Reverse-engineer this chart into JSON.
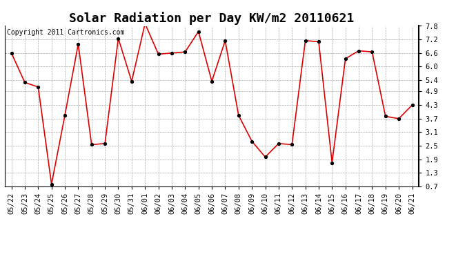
{
  "title": "Solar Radiation per Day KW/m2 20110621",
  "copyright_text": "Copyright 2011 Cartronics.com",
  "dates": [
    "05/22",
    "05/23",
    "05/24",
    "05/25",
    "05/26",
    "05/27",
    "05/28",
    "05/29",
    "05/30",
    "05/31",
    "06/01",
    "06/02",
    "06/03",
    "06/04",
    "06/05",
    "06/06",
    "06/07",
    "06/08",
    "06/09",
    "06/10",
    "06/11",
    "06/12",
    "06/13",
    "06/14",
    "06/15",
    "06/16",
    "06/17",
    "06/18",
    "06/19",
    "06/20",
    "06/21"
  ],
  "values": [
    6.6,
    5.3,
    5.1,
    0.8,
    3.85,
    7.0,
    2.55,
    2.6,
    7.25,
    5.35,
    7.9,
    6.55,
    6.6,
    6.65,
    7.55,
    5.35,
    7.15,
    3.85,
    2.7,
    2.0,
    2.6,
    2.55,
    7.15,
    7.1,
    1.75,
    6.35,
    6.7,
    6.65,
    3.8,
    3.7,
    4.3
  ],
  "line_color": "#dd0000",
  "marker": "o",
  "marker_size": 3,
  "marker_color": "#000000",
  "bg_color": "#ffffff",
  "plot_bg_color": "#ffffff",
  "grid_color": "#aaaaaa",
  "ylim": [
    0.7,
    7.8
  ],
  "yticks": [
    0.7,
    1.3,
    1.9,
    2.5,
    3.1,
    3.7,
    4.3,
    4.9,
    5.4,
    6.0,
    6.6,
    7.2,
    7.8
  ],
  "title_fontsize": 13,
  "tick_fontsize": 7.5,
  "copyright_fontsize": 7
}
